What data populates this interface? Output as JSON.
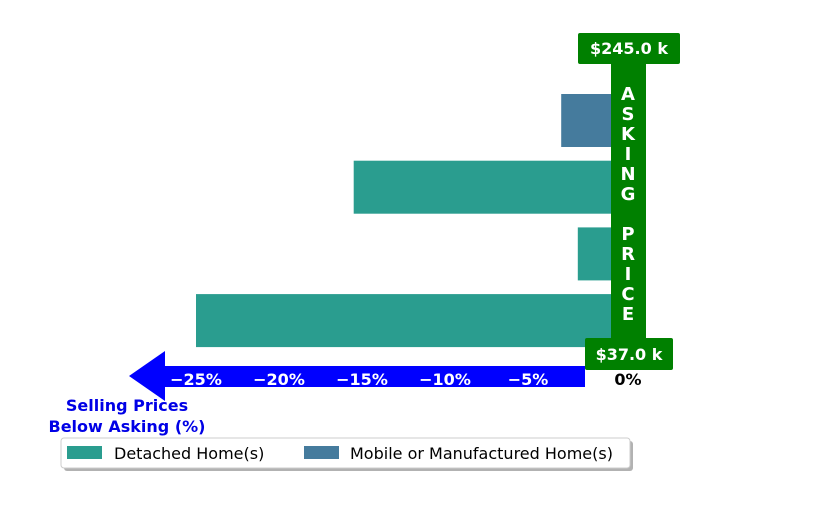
{
  "chart_data": {
    "type": "bar",
    "orientation": "horizontal",
    "series": [
      {
        "name": "Detached Home(s)",
        "color": "#2a9d8f"
      },
      {
        "name": "Mobile or Manufactured Home(s)",
        "color": "#457b9d"
      }
    ],
    "bars": [
      {
        "series": 1,
        "value": -3.0
      },
      {
        "series": 0,
        "value": -15.5
      },
      {
        "series": 0,
        "value": -2.0
      },
      {
        "series": 0,
        "value": -25.0
      }
    ],
    "xticks": [
      {
        "value": -25,
        "label": "−25%"
      },
      {
        "value": -20,
        "label": "−20%"
      },
      {
        "value": -15,
        "label": "−15%"
      },
      {
        "value": -10,
        "label": "−10%"
      },
      {
        "value": -5,
        "label": "−5%"
      },
      {
        "value": 0,
        "label": "0%"
      }
    ],
    "xlim": [
      -30,
      1.5
    ],
    "xlabel_lines": [
      "Selling Prices",
      "Below Asking (%)"
    ],
    "asking_price_max": "$245.0 k",
    "asking_price_min": "$37.0 k",
    "asking_price_label": "ASKING PRICE",
    "legend_position": "bottom",
    "colors": {
      "bar_color_0": "#2a9d8f",
      "bar_color_1": "#457b9d",
      "arrow": "#0000ff",
      "asking": "#008000"
    }
  }
}
